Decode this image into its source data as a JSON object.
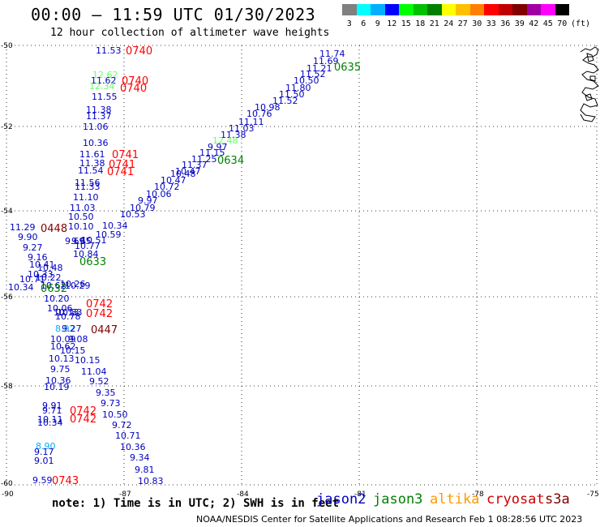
{
  "title": "00:00 – 11:59 UTC 01/30/2023",
  "subtitle": "12 hour collection of altimeter wave heights",
  "legend": {
    "labels": [
      "3",
      "6",
      "9",
      "12",
      "15",
      "18",
      "21",
      "24",
      "27",
      "30",
      "33",
      "36",
      "39",
      "42",
      "45",
      "70"
    ],
    "unit": "(ft)",
    "colors": [
      "#808080",
      "#00ffff",
      "#00b0ff",
      "#0000ff",
      "#00ff00",
      "#00c000",
      "#008000",
      "#ffff00",
      "#ffc000",
      "#ff8000",
      "#ff0000",
      "#c00000",
      "#800000",
      "#a000a0",
      "#ff00ff",
      "#000000"
    ]
  },
  "axes": {
    "lat_labels": [
      "-50",
      "-52",
      "-54",
      "-56",
      "-58",
      "-60"
    ],
    "lon_labels": [
      "-90",
      "-87",
      "-84",
      "-81",
      "-78",
      "-75"
    ]
  },
  "satellites": [
    {
      "name": "jason2",
      "color": "#0000c0"
    },
    {
      "name": "jason3",
      "color": "#008000"
    },
    {
      "name": "altika",
      "color": "#ff9900"
    },
    {
      "name": "cryosat",
      "color": "#cc0000"
    },
    {
      "name": "s3a",
      "color": "#800000"
    }
  ],
  "note": "note: 1) Time is in UTC; 2) SWH is in feet",
  "credit": "NOAA/NESDIS Center for Satellite Applications and Research   Feb  1 08:28:56 UTC 2023",
  "wave_heights": [
    {
      "v": "11.53",
      "c": "#0000c0"
    },
    {
      "v": "12.62",
      "c": "#66ff66"
    },
    {
      "v": "11.62",
      "c": "#0000c0"
    },
    {
      "v": "12.34",
      "c": "#66ff66"
    },
    {
      "v": "11.55",
      "c": "#0000c0"
    },
    {
      "v": "11.38",
      "c": "#0000c0"
    },
    {
      "v": "11.37",
      "c": "#0000c0"
    },
    {
      "v": "11.06",
      "c": "#0000c0"
    },
    {
      "v": "10.36",
      "c": "#0000c0"
    },
    {
      "v": "11.61",
      "c": "#0000c0"
    },
    {
      "v": "11.38",
      "c": "#0000c0"
    },
    {
      "v": "11.54",
      "c": "#0000c0"
    },
    {
      "v": "11.56",
      "c": "#0000c0"
    },
    {
      "v": "11.33",
      "c": "#0000c0"
    },
    {
      "v": "11.10",
      "c": "#0000c0"
    },
    {
      "v": "11.03",
      "c": "#0000c0"
    },
    {
      "v": "10.50",
      "c": "#0000c0"
    },
    {
      "v": "11.29",
      "c": "#0000c0"
    },
    {
      "v": "10.10",
      "c": "#0000c0"
    },
    {
      "v": "9.90",
      "c": "#0000c0"
    },
    {
      "v": "9.69",
      "c": "#0000c0"
    },
    {
      "v": "9.27",
      "c": "#0000c0"
    },
    {
      "v": "9.16",
      "c": "#0000c0"
    },
    {
      "v": "10.41",
      "c": "#0000c0"
    },
    {
      "v": "10.48",
      "c": "#0000c0"
    },
    {
      "v": "10.33",
      "c": "#0000c0"
    },
    {
      "v": "10.71",
      "c": "#0000c0"
    },
    {
      "v": "10.22",
      "c": "#0000c0"
    },
    {
      "v": "10.34",
      "c": "#0000c0"
    },
    {
      "v": "10.62",
      "c": "#0000c0"
    },
    {
      "v": "10.26",
      "c": "#0000c0"
    },
    {
      "v": "10.29",
      "c": "#0000c0"
    },
    {
      "v": "10.20",
      "c": "#0000c0"
    },
    {
      "v": "10.06",
      "c": "#0000c0"
    },
    {
      "v": "10.13",
      "c": "#0000c0"
    },
    {
      "v": "10.83",
      "c": "#0000c0"
    },
    {
      "v": "10.78",
      "c": "#0000c0"
    },
    {
      "v": "8.92",
      "c": "#00b0ff"
    },
    {
      "v": "9.27",
      "c": "#0000c0"
    },
    {
      "v": "10.09",
      "c": "#0000c0"
    },
    {
      "v": "9.08",
      "c": "#0000c0"
    },
    {
      "v": "10.62",
      "c": "#0000c0"
    },
    {
      "v": "10.15",
      "c": "#0000c0"
    },
    {
      "v": "10.13",
      "c": "#0000c0"
    },
    {
      "v": "10.15",
      "c": "#0000c0"
    },
    {
      "v": "9.75",
      "c": "#0000c0"
    },
    {
      "v": "11.04",
      "c": "#0000c0"
    },
    {
      "v": "10.36",
      "c": "#0000c0"
    },
    {
      "v": "10.19",
      "c": "#0000c0"
    },
    {
      "v": "9.52",
      "c": "#0000c0"
    },
    {
      "v": "9.35",
      "c": "#0000c0"
    },
    {
      "v": "9.73",
      "c": "#0000c0"
    },
    {
      "v": "9.91",
      "c": "#0000c0"
    },
    {
      "v": "9.71",
      "c": "#0000c0"
    },
    {
      "v": "10.50",
      "c": "#0000c0"
    },
    {
      "v": "10.11",
      "c": "#0000c0"
    },
    {
      "v": "10.34",
      "c": "#0000c0"
    },
    {
      "v": "9.72",
      "c": "#0000c0"
    },
    {
      "v": "10.71",
      "c": "#0000c0"
    },
    {
      "v": "10.36",
      "c": "#0000c0"
    },
    {
      "v": "8.90",
      "c": "#00b0ff"
    },
    {
      "v": "9.17",
      "c": "#0000c0"
    },
    {
      "v": "9.34",
      "c": "#0000c0"
    },
    {
      "v": "9.01",
      "c": "#0000c0"
    },
    {
      "v": "9.81",
      "c": "#0000c0"
    },
    {
      "v": "9.59",
      "c": "#0000c0"
    },
    {
      "v": "10.83",
      "c": "#0000c0"
    },
    {
      "v": "11.74",
      "c": "#0000c0"
    },
    {
      "v": "11.69",
      "c": "#0000c0"
    },
    {
      "v": "11.21",
      "c": "#0000c0"
    },
    {
      "v": "11.52",
      "c": "#0000c0"
    },
    {
      "v": "10.50",
      "c": "#0000c0"
    },
    {
      "v": "11.80",
      "c": "#0000c0"
    },
    {
      "v": "11.50",
      "c": "#0000c0"
    },
    {
      "v": "11.52",
      "c": "#0000c0"
    },
    {
      "v": "10.98",
      "c": "#0000c0"
    },
    {
      "v": "10.76",
      "c": "#0000c0"
    },
    {
      "v": "11.11",
      "c": "#0000c0"
    },
    {
      "v": "11.03",
      "c": "#0000c0"
    },
    {
      "v": "11.38",
      "c": "#0000c0"
    },
    {
      "v": "12.48",
      "c": "#66ff66"
    },
    {
      "v": "9.97",
      "c": "#0000c0"
    },
    {
      "v": "11.15",
      "c": "#0000c0"
    },
    {
      "v": "11.25",
      "c": "#0000c0"
    },
    {
      "v": "11.37",
      "c": "#0000c0"
    },
    {
      "v": "10.47",
      "c": "#0000c0"
    },
    {
      "v": "10.48",
      "c": "#0000c0"
    },
    {
      "v": "10.47",
      "c": "#0000c0"
    },
    {
      "v": "10.72",
      "c": "#0000c0"
    },
    {
      "v": "10.06",
      "c": "#0000c0"
    },
    {
      "v": "9.97",
      "c": "#0000c0"
    },
    {
      "v": "10.79",
      "c": "#0000c0"
    },
    {
      "v": "10.53",
      "c": "#0000c0"
    },
    {
      "v": "10.34",
      "c": "#0000c0"
    },
    {
      "v": "10.59",
      "c": "#0000c0"
    },
    {
      "v": "10.51",
      "c": "#0000c0"
    },
    {
      "v": "10.77",
      "c": "#0000c0"
    },
    {
      "v": "10.84",
      "c": "#0000c0"
    },
    {
      "v": "9.65",
      "c": "#0000c0"
    }
  ],
  "pass_times": [
    {
      "v": "0740",
      "c": "#ff0000"
    },
    {
      "v": "0740",
      "c": "#ff0000"
    },
    {
      "v": "0740",
      "c": "#ff0000"
    },
    {
      "v": "0741",
      "c": "#ff0000"
    },
    {
      "v": "0741",
      "c": "#ff0000"
    },
    {
      "v": "0741",
      "c": "#ff0000"
    },
    {
      "v": "0448",
      "c": "#800000"
    },
    {
      "v": "0633",
      "c": "#008000"
    },
    {
      "v": "0632",
      "c": "#008000"
    },
    {
      "v": "0742",
      "c": "#ff0000"
    },
    {
      "v": "0742",
      "c": "#ff0000"
    },
    {
      "v": "0447",
      "c": "#800000"
    },
    {
      "v": "0742",
      "c": "#ff0000"
    },
    {
      "v": "0742",
      "c": "#ff0000"
    },
    {
      "v": "0743",
      "c": "#ff0000"
    },
    {
      "v": "0635",
      "c": "#008000"
    },
    {
      "v": "0634",
      "c": "#008000"
    }
  ]
}
